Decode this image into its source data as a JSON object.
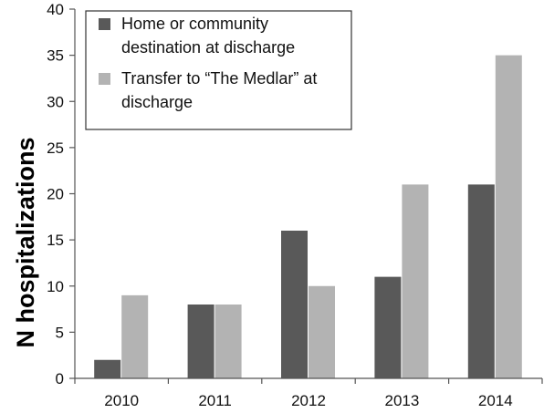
{
  "chart_data": {
    "type": "bar",
    "categories": [
      "2010",
      "2011",
      "2012",
      "2013",
      "2014"
    ],
    "series": [
      {
        "name": "Home or community destination at discharge",
        "values": [
          2,
          8,
          16,
          11,
          21
        ],
        "color": "#595959"
      },
      {
        "name": "Transfer to “The Medlar” at discharge",
        "values": [
          9,
          8,
          10,
          21,
          35
        ],
        "color": "#b3b3b3"
      }
    ],
    "legend_lines": [
      [
        "Home or community",
        "destination at discharge"
      ],
      [
        "Transfer to “The Medlar” at",
        "discharge"
      ]
    ],
    "ylabel": "N hospitalizations",
    "xlabel": "",
    "ylim": [
      0,
      40
    ],
    "yticks": [
      0,
      5,
      10,
      15,
      20,
      25,
      30,
      35,
      40
    ],
    "grid": false,
    "legend_position": "top-left"
  }
}
